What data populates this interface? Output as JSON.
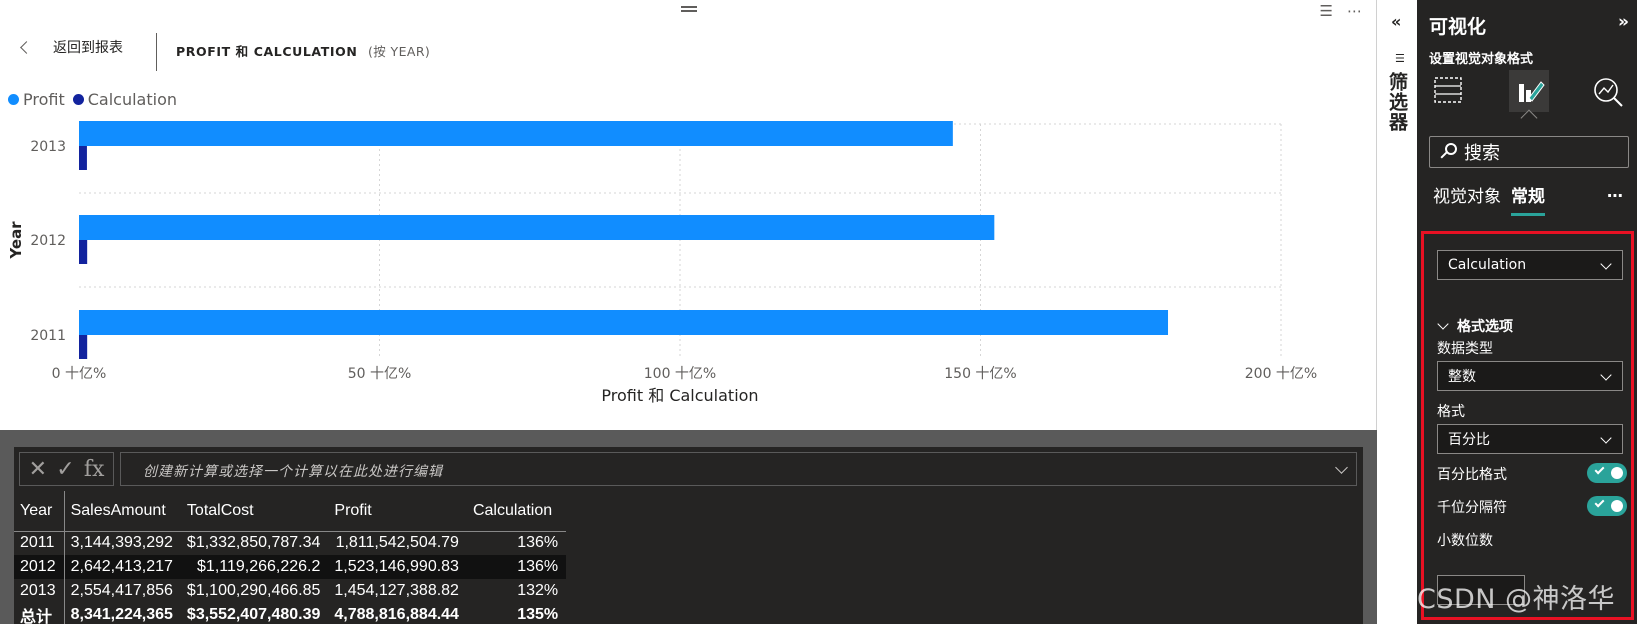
{
  "report": {
    "back_label": "返回到报表",
    "visual_title": "PROFIT 和 CALCULATION",
    "visual_by": "(按 YEAR)"
  },
  "chart_data": {
    "type": "bar",
    "orientation": "horizontal",
    "categories": [
      "2013",
      "2012",
      "2011"
    ],
    "series": [
      {
        "name": "Profit",
        "values": [
          145.4,
          152.3,
          181.2
        ],
        "color": "#118DFF"
      },
      {
        "name": "Calculation",
        "values": [
          1.32,
          1.36,
          1.36
        ],
        "color": "#12239E"
      }
    ],
    "xlabel": "Profit 和 Calculation",
    "ylabel": "Year",
    "xticks": [
      "0 十亿%",
      "50 十亿%",
      "100 十亿%",
      "150 十亿%",
      "200 十亿%"
    ],
    "xlim": [
      0,
      200
    ],
    "grid": true,
    "legend_position": "top-left"
  },
  "data_view": {
    "formula_placeholder": "创建新计算或选择一个计算以在此处进行编辑",
    "columns": [
      "Year",
      "SalesAmount",
      "TotalCost",
      "Profit",
      "Calculation"
    ],
    "rows": [
      [
        "2011",
        "3,144,393,292",
        "$1,332,850,787.34",
        "1,811,542,504.79",
        "136%"
      ],
      [
        "2012",
        "2,642,413,217",
        "$1,119,266,226.2",
        "1,523,146,990.83",
        "136%"
      ],
      [
        "2013",
        "2,554,417,856",
        "$1,100,290,466.85",
        "1,454,127,388.82",
        "132%"
      ]
    ],
    "total": [
      "总计",
      "8,341,224,365",
      "$3,552,407,480.39",
      "4,788,816,884.44",
      "135%"
    ]
  },
  "filters": {
    "label": "筛选器"
  },
  "pane": {
    "title": "可视化",
    "subtitle": "设置视觉对象格式",
    "search_placeholder": "搜索",
    "tab_visual": "视觉对象",
    "tab_general": "常规",
    "field_selected": "Calculation",
    "section_title": "格式选项",
    "data_type_label": "数据类型",
    "data_type_value": "整数",
    "format_label": "格式",
    "format_value": "百分比",
    "percent_format_label": "百分比格式",
    "percent_format_on": true,
    "thousands_label": "千位分隔符",
    "thousands_on": true,
    "decimals_label": "小数位数",
    "accent_color": "#2AA39A"
  },
  "watermark": "CSDN @神洛华"
}
